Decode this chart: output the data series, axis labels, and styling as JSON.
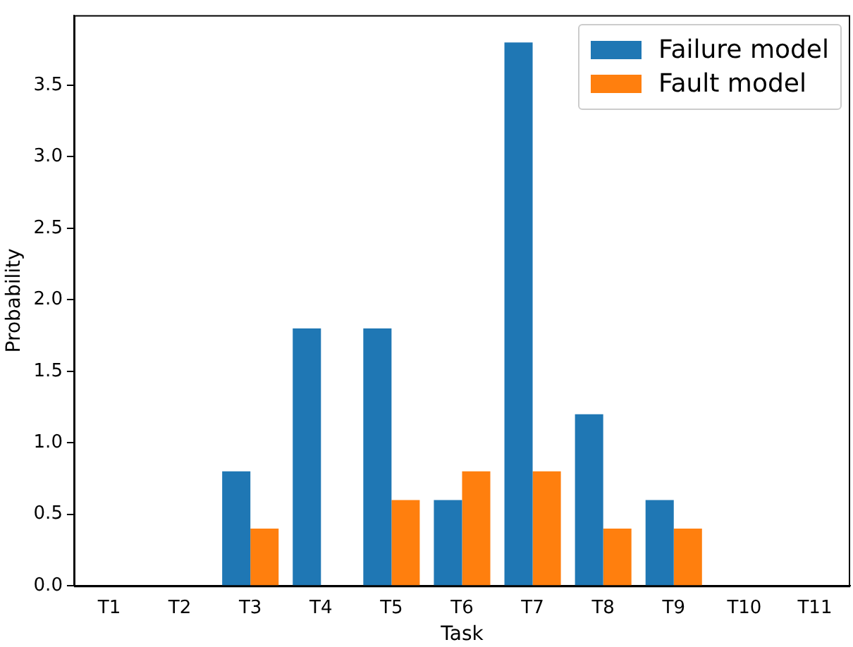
{
  "chart_data": {
    "type": "bar",
    "xlabel": "Task",
    "ylabel": "Probability",
    "categories": [
      "T1",
      "T2",
      "T3",
      "T4",
      "T5",
      "T6",
      "T7",
      "T8",
      "T9",
      "T10",
      "T11"
    ],
    "series": [
      {
        "name": "Failure model",
        "color": "#1f77b4",
        "values": [
          0,
          0,
          0.8,
          1.8,
          1.8,
          0.6,
          3.8,
          1.2,
          0.6,
          0,
          0
        ]
      },
      {
        "name": "Fault model",
        "color": "#ff7f0e",
        "values": [
          0,
          0,
          0.4,
          0,
          0.6,
          0.8,
          0.8,
          0.4,
          0.4,
          0,
          0
        ]
      }
    ],
    "ylim": [
      0,
      3.99
    ],
    "yticks": [
      {
        "value": 0,
        "label": "0.0"
      },
      {
        "value": 0.5,
        "label": "0.5"
      },
      {
        "value": 1,
        "label": "1.0"
      },
      {
        "value": 1.5,
        "label": "1.5"
      },
      {
        "value": 2,
        "label": "2.0"
      },
      {
        "value": 2.5,
        "label": "2.5"
      },
      {
        "value": 3,
        "label": "3.0"
      },
      {
        "value": 3.5,
        "label": "3.5"
      }
    ],
    "grid": false,
    "legend": "top right"
  }
}
